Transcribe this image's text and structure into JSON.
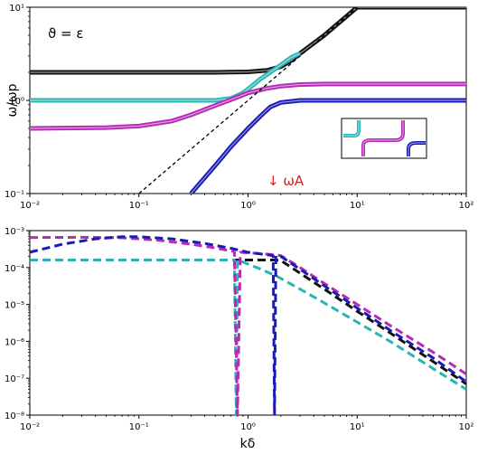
{
  "chart_data": [
    {
      "type": "line",
      "scale": "log-log",
      "ylabel": "ω/ωp",
      "xlim": [
        0.01,
        100
      ],
      "ylim": [
        0.1,
        10
      ],
      "x_ticks": [
        "10⁻²",
        "10⁻¹",
        "10⁰",
        "10¹",
        "10²"
      ],
      "y_ticks": [
        "10⁻¹",
        "10⁰",
        "10¹"
      ],
      "annotation_theta": "ϑ = ε",
      "annotation_omega": "↓ ωA",
      "series": [
        {
          "color": "#111111",
          "style": "solid",
          "x": [
            0.01,
            0.1,
            0.5,
            1,
            1.5,
            2,
            2.5,
            3,
            5,
            10,
            30,
            100
          ],
          "y": [
            2.0,
            2.0,
            2.0,
            2.02,
            2.1,
            2.3,
            2.7,
            3.2,
            5,
            10,
            10,
            10
          ]
        },
        {
          "color": "#2ab5b5",
          "style": "solid",
          "x": [
            0.01,
            0.1,
            0.5,
            0.7,
            0.9,
            1.1,
            1.3,
            1.6,
            2,
            2.5,
            3
          ],
          "y": [
            1.0,
            1.0,
            1.0,
            1.05,
            1.2,
            1.45,
            1.7,
            2.0,
            2.4,
            2.9,
            3.2
          ]
        },
        {
          "color": "#b62ab6",
          "style": "solid",
          "x": [
            0.01,
            0.05,
            0.1,
            0.2,
            0.3,
            0.5,
            0.7,
            1,
            1.5,
            2,
            3,
            5,
            10,
            30,
            100
          ],
          "y": [
            0.5,
            0.51,
            0.53,
            0.6,
            0.7,
            0.88,
            1.02,
            1.2,
            1.35,
            1.42,
            1.48,
            1.5,
            1.5,
            1.5,
            1.5
          ]
        },
        {
          "color": "#1a1ab8",
          "style": "solid",
          "x": [
            0.3,
            0.5,
            0.7,
            1,
            1.3,
            1.6,
            2,
            3,
            5,
            10,
            100
          ],
          "y": [
            0.1,
            0.2,
            0.32,
            0.5,
            0.68,
            0.85,
            0.95,
            1.0,
            1.0,
            1.0,
            1.0
          ]
        },
        {
          "color": "#000000",
          "style": "dashed",
          "x": [
            0.1,
            10
          ],
          "y": [
            0.1,
            10
          ]
        }
      ]
    },
    {
      "type": "line",
      "scale": "log-log",
      "xlabel": "kδ",
      "xlim": [
        0.01,
        100
      ],
      "ylim": [
        1e-08,
        0.001
      ],
      "x_ticks": [
        "10⁻²",
        "10⁻¹",
        "10⁰",
        "10¹",
        "10²"
      ],
      "y_ticks": [
        "10⁻⁸",
        "10⁻⁷",
        "10⁻⁶",
        "10⁻⁵",
        "10⁻⁴",
        "10⁻³"
      ],
      "series": [
        {
          "color": "#111111",
          "style": "dashed",
          "x": [
            0.01,
            0.1,
            1,
            1.5,
            1.8,
            2,
            3,
            5,
            10,
            20,
            50,
            100
          ],
          "y": [
            0.00016,
            0.00016,
            0.00016,
            0.00016,
            0.00016,
            0.000155,
            7e-05,
            2.6e-05,
            6.5e-06,
            1.7e-06,
            2.8e-07,
            7e-08
          ]
        },
        {
          "color": "#2ab5b5",
          "style": "dashed",
          "x": [
            0.01,
            0.1,
            0.5,
            0.7,
            0.75,
            0.78,
            0.8,
            0.9,
            1.2,
            1.8,
            3,
            5,
            10,
            20,
            50,
            100
          ],
          "y": [
            0.00016,
            0.00016,
            0.00016,
            0.00016,
            0.00016,
            1e-08,
            0.00016,
            0.00014,
            0.0001,
            6e-05,
            2.6e-05,
            1.1e-05,
            3.3e-06,
            1e-06,
            1.8e-07,
            5e-08
          ]
        },
        {
          "color": "#b62ab6",
          "style": "dashed",
          "x": [
            0.01,
            0.03,
            0.07,
            0.15,
            0.3,
            0.5,
            0.75,
            0.8,
            0.85,
            1,
            1.5,
            1.8,
            2,
            3,
            5,
            10,
            20,
            50,
            100
          ],
          "y": [
            0.00065,
            0.00066,
            0.00064,
            0.00055,
            0.00043,
            0.00034,
            0.00027,
            1e-08,
            0.00026,
            0.00025,
            0.00023,
            0.00022,
            0.00021,
            0.0001,
            3.7e-05,
            1e-05,
            2.7e-06,
            5e-07,
            1.3e-07
          ]
        },
        {
          "color": "#1a1ab8",
          "style": "dashed",
          "x": [
            0.01,
            0.02,
            0.04,
            0.07,
            0.1,
            0.2,
            0.4,
            0.7,
            1,
            1.5,
            1.7,
            1.75,
            1.8,
            2,
            3,
            5,
            10,
            20,
            50,
            100
          ],
          "y": [
            0.00026,
            0.00043,
            0.0006,
            0.00068,
            0.00068,
            0.0006,
            0.00045,
            0.00033,
            0.00026,
            0.00022,
            0.00021,
            1e-08,
            0.00021,
            0.0002,
            9e-05,
            3.2e-05,
            8e-06,
            2e-06,
            3.5e-07,
            8e-08
          ]
        }
      ]
    }
  ]
}
